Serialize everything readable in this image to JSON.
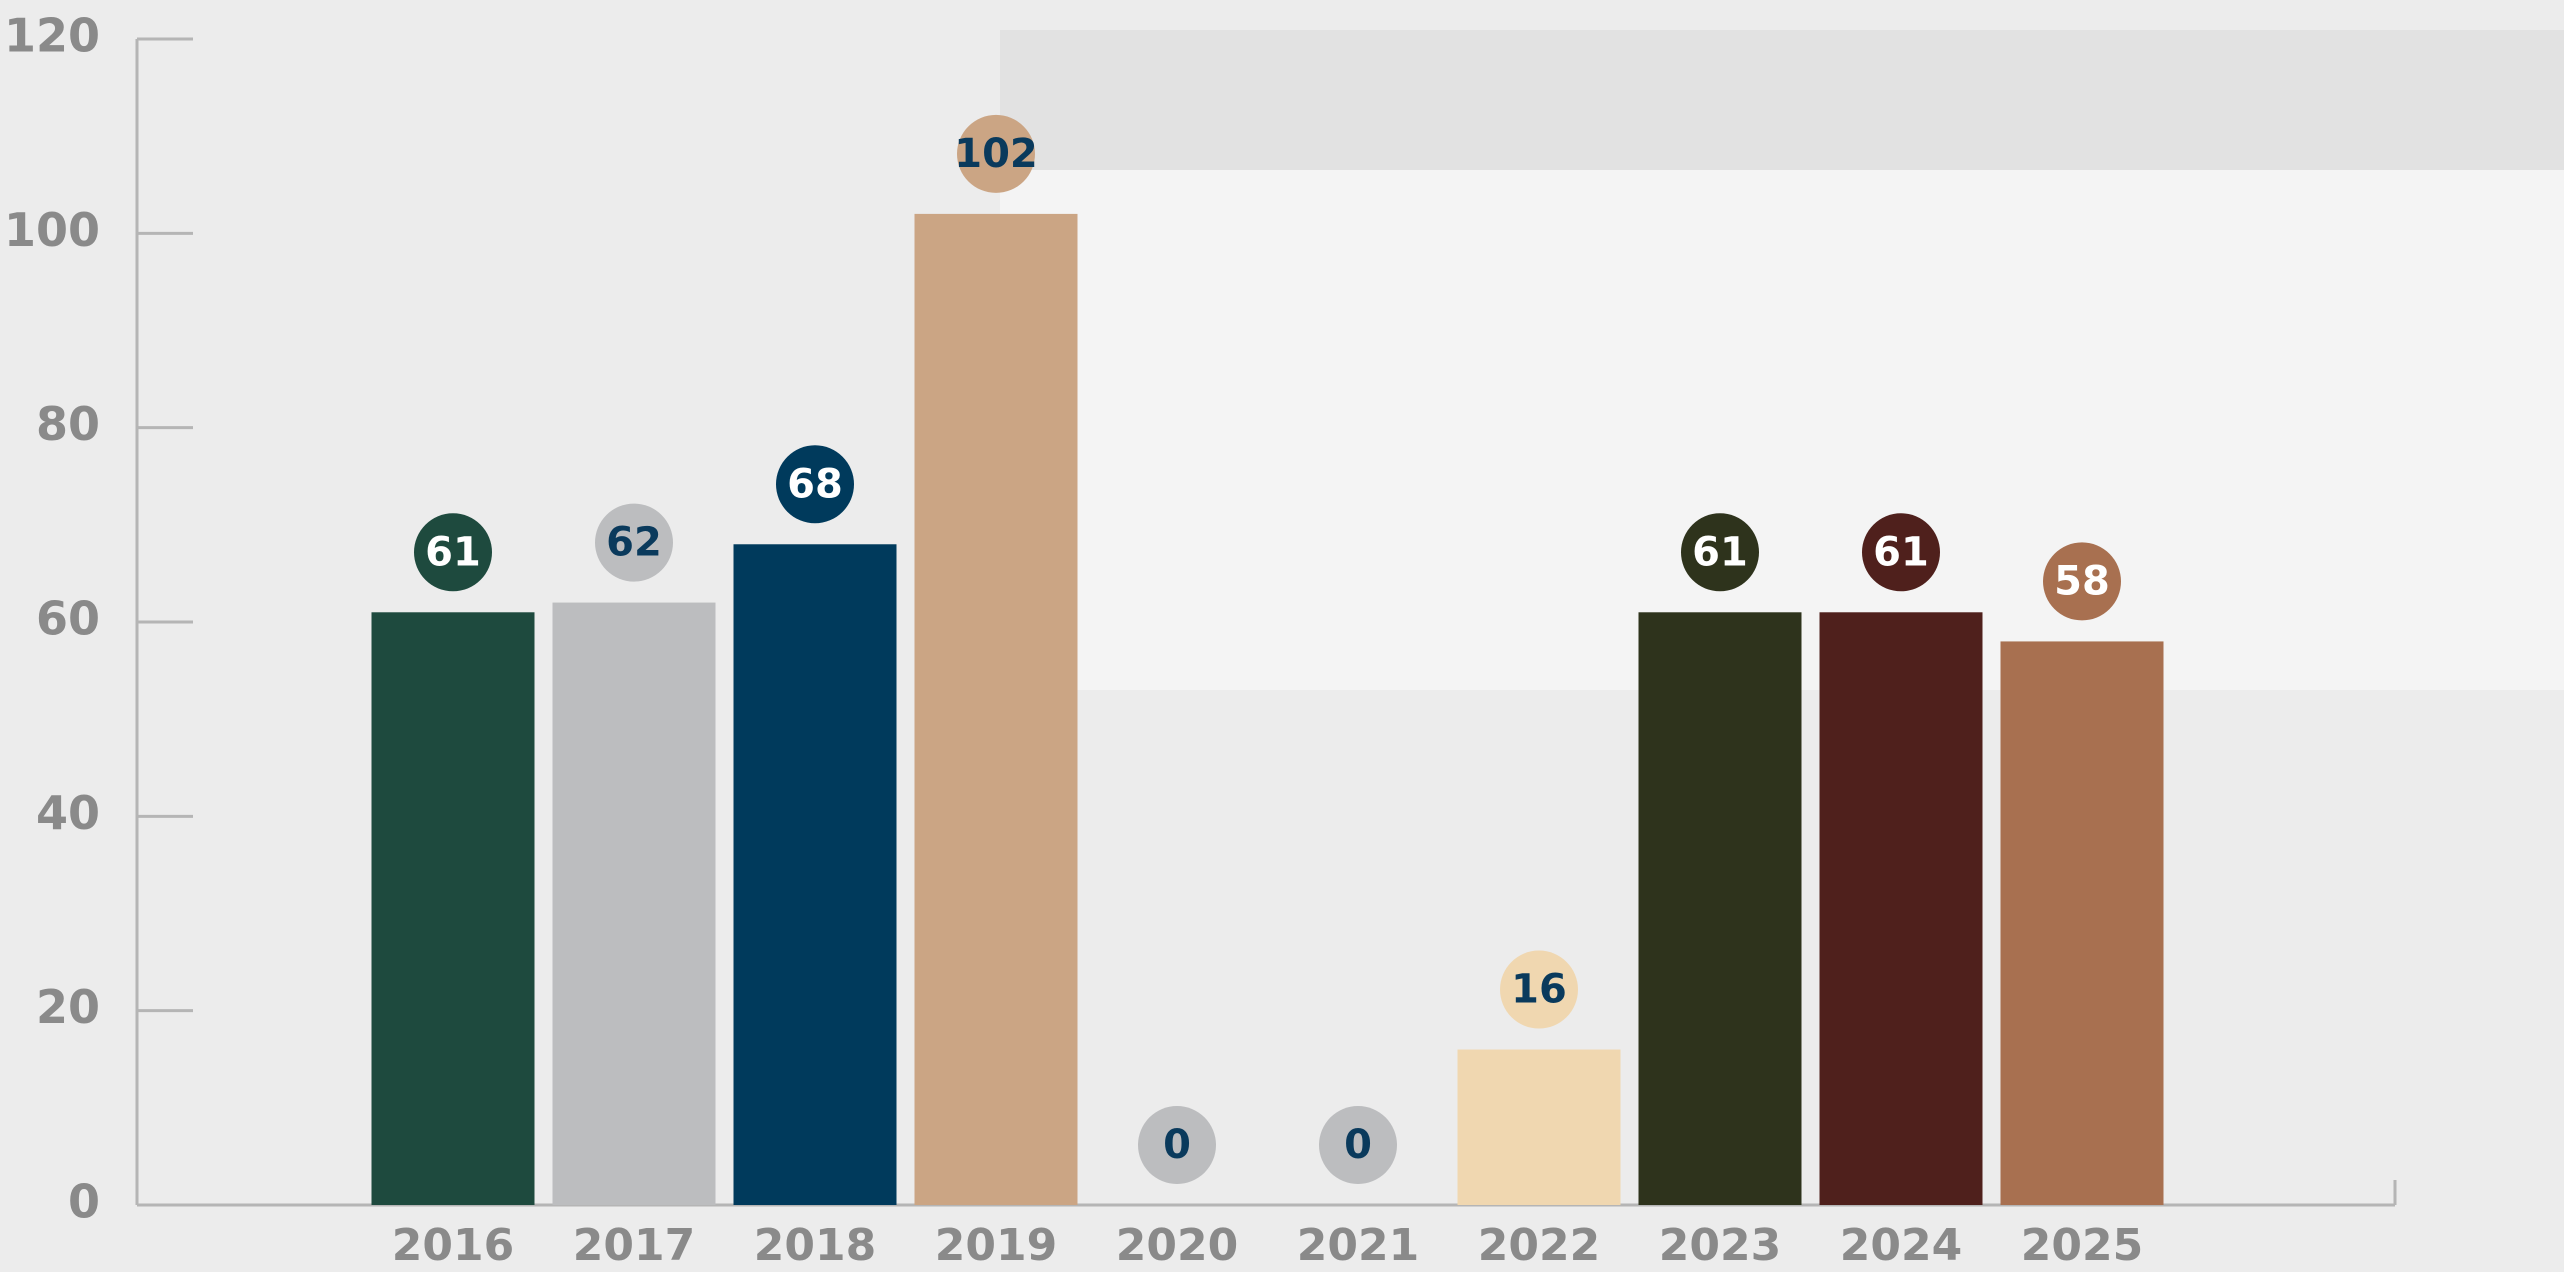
{
  "chart_data": {
    "type": "bar",
    "categories": [
      "2016",
      "2017",
      "2018",
      "2019",
      "2020",
      "2021",
      "2022",
      "2023",
      "2024",
      "2025"
    ],
    "values": [
      61,
      62,
      68,
      102,
      0,
      0,
      16,
      61,
      61,
      58
    ],
    "colors": [
      "#1e4a3e",
      "#bcbdbf",
      "#003a5c",
      "#cba584",
      "#bcbdbf",
      "#bcbdbf",
      "#f0d7b0",
      "#2e331c",
      "#4f201c",
      "#a87050"
    ],
    "ylim": [
      0,
      120
    ],
    "yticks": [
      0,
      20,
      40,
      60,
      80,
      100,
      120
    ]
  }
}
